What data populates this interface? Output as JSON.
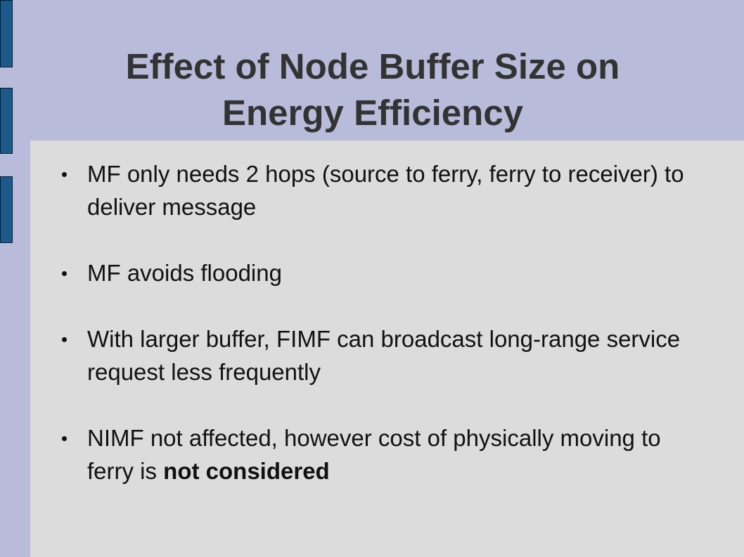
{
  "slide": {
    "title": "Effect of Node Buffer Size on Energy Efficiency",
    "bullets": [
      {
        "text": "MF only needs 2 hops (source to ferry, ferry to receiver) to deliver message"
      },
      {
        "text": "MF avoids flooding"
      },
      {
        "text": "With larger buffer, FIMF can broadcast long-range service request less frequently"
      },
      {
        "text": "NIMF not affected, however cost of physically moving to ferry is ",
        "bold": "not considered"
      }
    ]
  }
}
